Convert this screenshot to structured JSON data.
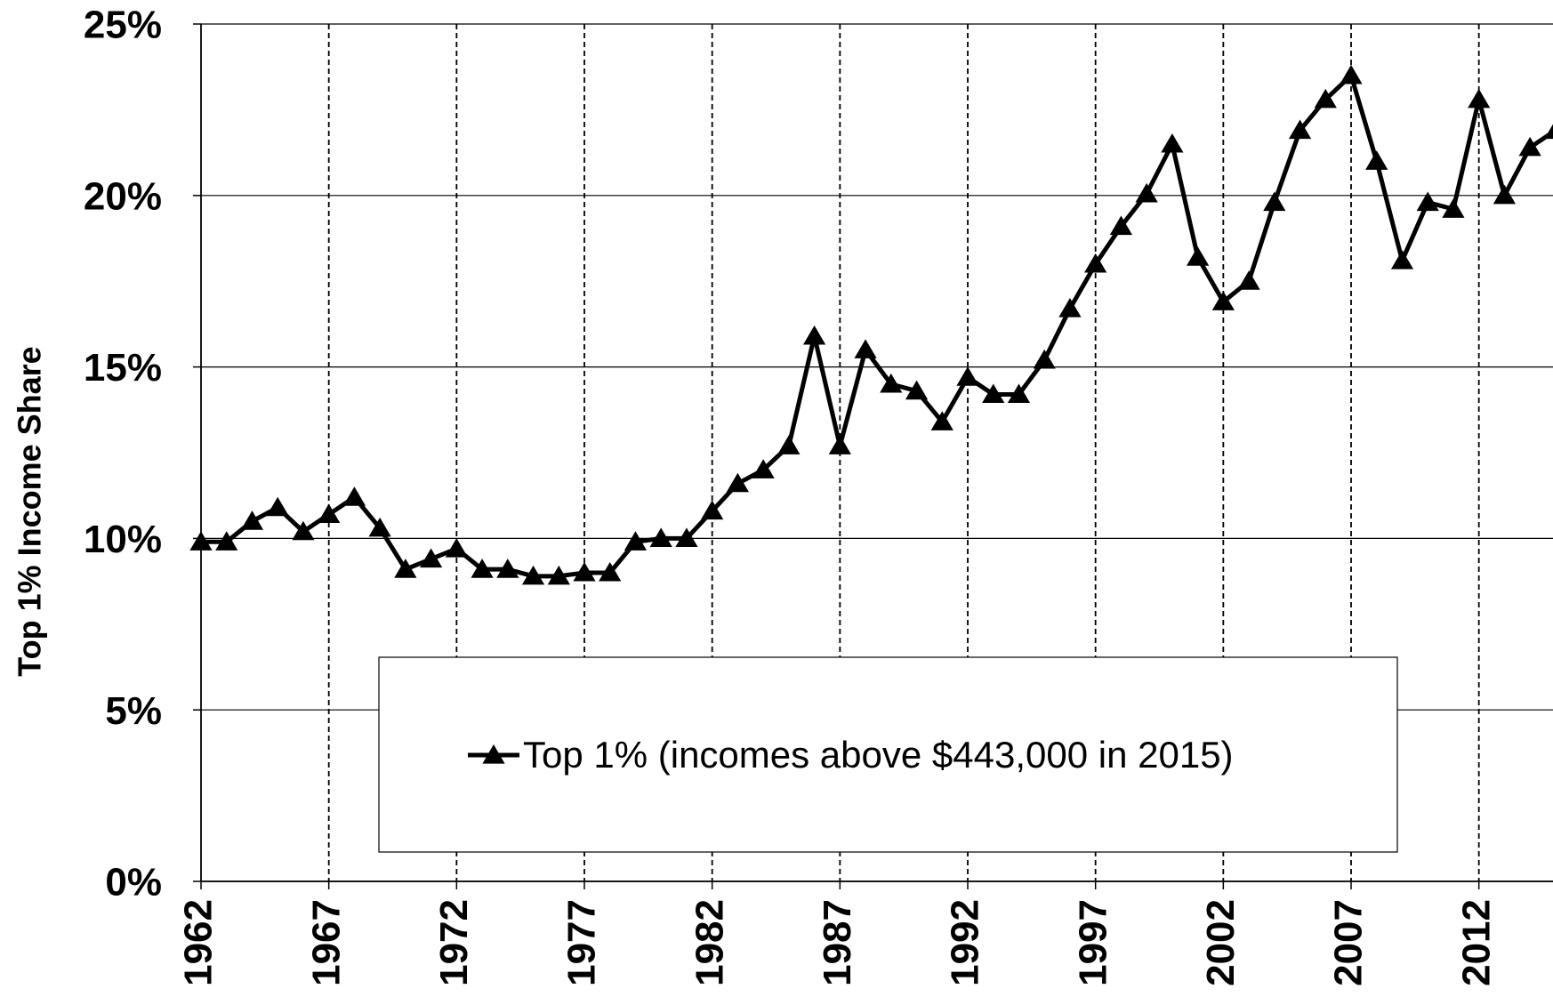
{
  "chart_data": {
    "type": "line",
    "ylabel": "Top 1% Income Share",
    "x": [
      1962,
      1963,
      1964,
      1965,
      1966,
      1967,
      1968,
      1969,
      1970,
      1971,
      1972,
      1973,
      1974,
      1975,
      1976,
      1977,
      1978,
      1979,
      1980,
      1981,
      1982,
      1983,
      1984,
      1985,
      1986,
      1987,
      1988,
      1989,
      1990,
      1991,
      1992,
      1993,
      1994,
      1995,
      1996,
      1997,
      1998,
      1999,
      2000,
      2001,
      2002,
      2003,
      2004,
      2005,
      2006,
      2007,
      2008,
      2009,
      2010,
      2011,
      2012,
      2013,
      2014,
      2015
    ],
    "series": [
      {
        "name": "Top 1% (incomes above $443,000 in 2015)",
        "color": "#000000",
        "values": [
          9.9,
          9.9,
          10.5,
          10.9,
          10.2,
          10.7,
          11.2,
          10.3,
          9.1,
          9.4,
          9.7,
          9.1,
          9.1,
          8.9,
          8.9,
          9.0,
          9.0,
          9.9,
          10.0,
          10.0,
          10.8,
          11.6,
          12.0,
          12.7,
          15.9,
          12.7,
          15.5,
          14.5,
          14.3,
          13.4,
          14.7,
          14.2,
          14.2,
          15.2,
          16.7,
          18.0,
          19.1,
          20.05,
          21.5,
          18.2,
          16.9,
          17.5,
          19.8,
          21.9,
          22.8,
          23.5,
          21.0,
          18.1,
          19.8,
          19.6,
          22.8,
          20.0,
          21.4,
          21.9
        ]
      }
    ],
    "xlim": [
      1962,
      2014.9
    ],
    "xticks": [
      1962,
      1967,
      1972,
      1977,
      1982,
      1987,
      1992,
      1997,
      2002,
      2007,
      2012
    ],
    "ylim": [
      0,
      25
    ],
    "yticks": [
      {
        "value": 0,
        "label": "0%"
      },
      {
        "value": 5,
        "label": "5%"
      },
      {
        "value": 10,
        "label": "10%"
      },
      {
        "value": 15,
        "label": "15%"
      },
      {
        "value": 20,
        "label": "20%"
      },
      {
        "value": 25,
        "label": "25%"
      }
    ],
    "grid": true,
    "legend": "bottom"
  }
}
